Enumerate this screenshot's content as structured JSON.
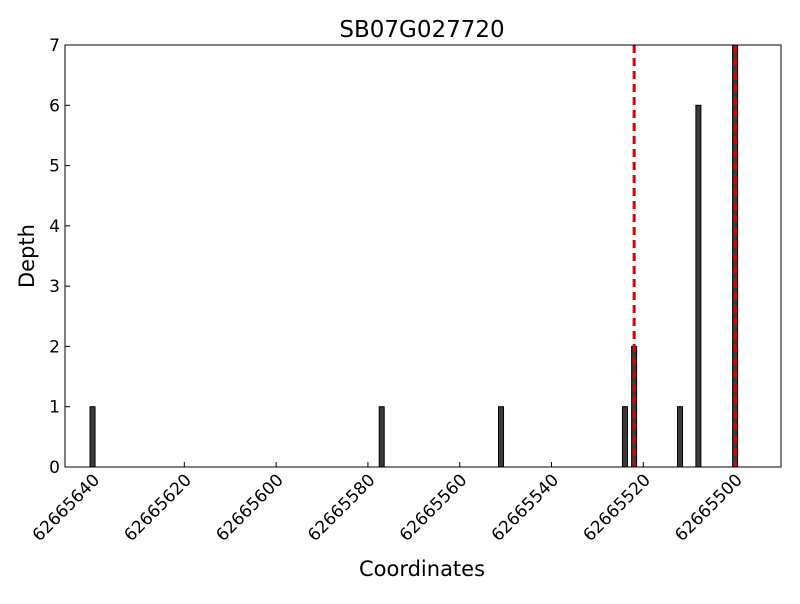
{
  "chart_data": {
    "type": "bar",
    "title": "SB07G027720",
    "xlabel": "Coordinates",
    "ylabel": "Depth",
    "x_axis_inverted": true,
    "xlim": [
      62665646,
      62665490
    ],
    "ylim": [
      0,
      7
    ],
    "x_ticks": [
      62665640,
      62665620,
      62665600,
      62665580,
      62665560,
      62665540,
      62665520,
      62665500
    ],
    "y_ticks": [
      0,
      1,
      2,
      3,
      4,
      5,
      6,
      7
    ],
    "grid": false,
    "bars": [
      {
        "x": 62665640,
        "value": 1
      },
      {
        "x": 62665577,
        "value": 1
      },
      {
        "x": 62665551,
        "value": 1
      },
      {
        "x": 62665524,
        "value": 1
      },
      {
        "x": 62665522,
        "value": 2
      },
      {
        "x": 62665512,
        "value": 1
      },
      {
        "x": 62665508,
        "value": 6
      },
      {
        "x": 62665500,
        "value": 7
      }
    ],
    "markers": [
      {
        "x": 62665522,
        "color": "#dd0000",
        "style": "dashed"
      },
      {
        "x": 62665500,
        "color": "#dd0000",
        "style": "dashed"
      }
    ],
    "bar_color": "#3a3a3a"
  }
}
